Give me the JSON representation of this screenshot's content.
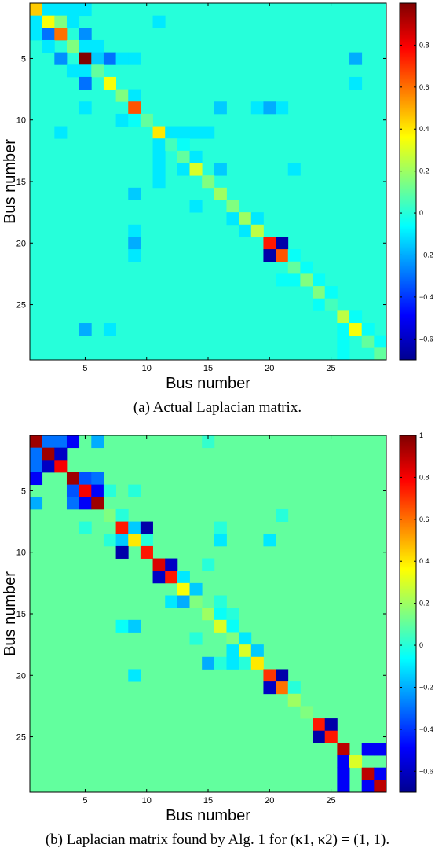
{
  "colorscale": {
    "name": "jet",
    "stops": [
      "#00008f",
      "#0000ff",
      "#0080ff",
      "#00ffff",
      "#80ff80",
      "#ffff00",
      "#ff8000",
      "#ff0000",
      "#800000"
    ]
  },
  "chart_data": [
    {
      "type": "heatmap",
      "n": 29,
      "xlabel": "Bus number",
      "ylabel": "Bus number",
      "xticks": [
        5,
        10,
        15,
        20,
        25
      ],
      "yticks": [
        5,
        10,
        15,
        20,
        25
      ],
      "clim": [
        -0.7,
        1.0
      ],
      "colorbar_ticks": [
        0.8,
        0.6,
        0.4,
        0.2,
        0,
        -0.2,
        -0.4,
        -0.6
      ],
      "background": 0,
      "cells": [
        [
          1,
          1,
          0.45
        ],
        [
          1,
          2,
          -0.1
        ],
        [
          1,
          3,
          -0.1
        ],
        [
          1,
          4,
          -0.1
        ],
        [
          1,
          5,
          -0.1
        ],
        [
          2,
          1,
          -0.1
        ],
        [
          2,
          2,
          0.35
        ],
        [
          2,
          3,
          0.15
        ],
        [
          2,
          4,
          -0.1
        ],
        [
          2,
          11,
          -0.1
        ],
        [
          3,
          1,
          -0.1
        ],
        [
          3,
          2,
          -0.3
        ],
        [
          3,
          3,
          0.6
        ],
        [
          3,
          5,
          -0.25
        ],
        [
          4,
          2,
          -0.1
        ],
        [
          4,
          4,
          0.15
        ],
        [
          4,
          5,
          -0.1
        ],
        [
          4,
          6,
          -0.1
        ],
        [
          5,
          3,
          -0.25
        ],
        [
          5,
          5,
          1.0
        ],
        [
          5,
          6,
          -0.15
        ],
        [
          5,
          7,
          -0.3
        ],
        [
          5,
          8,
          -0.1
        ],
        [
          5,
          9,
          -0.1
        ],
        [
          5,
          27,
          -0.2
        ],
        [
          6,
          4,
          -0.1
        ],
        [
          6,
          5,
          -0.1
        ],
        [
          6,
          6,
          0.1
        ],
        [
          7,
          5,
          -0.3
        ],
        [
          7,
          7,
          0.35
        ],
        [
          7,
          27,
          -0.1
        ],
        [
          8,
          8,
          0.15
        ],
        [
          8,
          9,
          -0.1
        ],
        [
          9,
          5,
          -0.1
        ],
        [
          9,
          9,
          0.65
        ],
        [
          9,
          16,
          -0.15
        ],
        [
          9,
          19,
          -0.1
        ],
        [
          9,
          20,
          -0.2
        ],
        [
          9,
          21,
          -0.1
        ],
        [
          10,
          8,
          -0.1
        ],
        [
          10,
          9,
          -0.05
        ],
        [
          10,
          10,
          0.1
        ],
        [
          11,
          3,
          -0.1
        ],
        [
          11,
          11,
          0.4
        ],
        [
          11,
          12,
          -0.1
        ],
        [
          11,
          13,
          -0.1
        ],
        [
          11,
          14,
          -0.1
        ],
        [
          11,
          15,
          -0.1
        ],
        [
          12,
          11,
          -0.1
        ],
        [
          12,
          12,
          0.05
        ],
        [
          12,
          13,
          -0.05
        ],
        [
          13,
          11,
          -0.1
        ],
        [
          13,
          13,
          0.1
        ],
        [
          13,
          14,
          -0.1
        ],
        [
          14,
          11,
          -0.1
        ],
        [
          14,
          13,
          -0.1
        ],
        [
          14,
          14,
          0.3
        ],
        [
          14,
          16,
          -0.15
        ],
        [
          14,
          22,
          -0.1
        ],
        [
          15,
          11,
          -0.1
        ],
        [
          15,
          15,
          0.15
        ],
        [
          16,
          9,
          -0.15
        ],
        [
          16,
          16,
          0.2
        ],
        [
          17,
          14,
          -0.1
        ],
        [
          17,
          17,
          0.15
        ],
        [
          18,
          17,
          -0.1
        ],
        [
          18,
          18,
          0.2
        ],
        [
          18,
          19,
          -0.1
        ],
        [
          19,
          9,
          -0.1
        ],
        [
          19,
          18,
          -0.1
        ],
        [
          19,
          19,
          0.25
        ],
        [
          20,
          9,
          -0.2
        ],
        [
          20,
          20,
          0.75
        ],
        [
          20,
          21,
          -0.65
        ],
        [
          21,
          9,
          -0.1
        ],
        [
          21,
          20,
          -0.65
        ],
        [
          21,
          21,
          0.65
        ],
        [
          21,
          22,
          -0.05
        ],
        [
          22,
          22,
          0.1
        ],
        [
          22,
          23,
          -0.05
        ],
        [
          23,
          21,
          -0.05
        ],
        [
          23,
          22,
          -0.05
        ],
        [
          23,
          23,
          0.15
        ],
        [
          23,
          24,
          -0.05
        ],
        [
          24,
          24,
          0.15
        ],
        [
          24,
          25,
          -0.05
        ],
        [
          25,
          24,
          -0.05
        ],
        [
          25,
          25,
          0.05
        ],
        [
          26,
          26,
          0.25
        ],
        [
          26,
          27,
          -0.05
        ],
        [
          27,
          5,
          -0.2
        ],
        [
          27,
          7,
          -0.1
        ],
        [
          27,
          26,
          -0.05
        ],
        [
          27,
          27,
          0.35
        ],
        [
          27,
          28,
          -0.05
        ],
        [
          28,
          26,
          -0.05
        ],
        [
          28,
          28,
          0.1
        ],
        [
          28,
          29,
          -0.05
        ],
        [
          29,
          26,
          -0.05
        ],
        [
          29,
          29,
          0.1
        ]
      ]
    },
    {
      "type": "heatmap",
      "n": 29,
      "xlabel": "Bus number",
      "ylabel": "Bus number",
      "xticks": [
        5,
        10,
        15,
        20,
        25
      ],
      "yticks": [
        5,
        10,
        15,
        20,
        25
      ],
      "clim": [
        -0.7,
        1.0
      ],
      "colorbar_ticks": [
        1,
        0.8,
        0.6,
        0.4,
        0.2,
        0,
        -0.2,
        -0.4,
        -0.6
      ],
      "background": 0.1,
      "cells": [
        [
          1,
          1,
          0.95
        ],
        [
          1,
          2,
          -0.3
        ],
        [
          1,
          3,
          -0.3
        ],
        [
          1,
          4,
          -0.5
        ],
        [
          1,
          6,
          -0.2
        ],
        [
          1,
          15,
          0.02
        ],
        [
          2,
          1,
          -0.3
        ],
        [
          2,
          2,
          0.95
        ],
        [
          2,
          3,
          -0.6
        ],
        [
          3,
          1,
          -0.3
        ],
        [
          3,
          2,
          -0.6
        ],
        [
          3,
          3,
          0.8
        ],
        [
          4,
          1,
          -0.5
        ],
        [
          4,
          4,
          0.95
        ],
        [
          4,
          5,
          -0.35
        ],
        [
          4,
          6,
          -0.3
        ],
        [
          5,
          4,
          -0.35
        ],
        [
          5,
          5,
          0.8
        ],
        [
          5,
          6,
          -0.5
        ],
        [
          5,
          7,
          0.0
        ],
        [
          5,
          9,
          0.0
        ],
        [
          6,
          1,
          -0.2
        ],
        [
          6,
          4,
          -0.3
        ],
        [
          6,
          5,
          -0.5
        ],
        [
          6,
          6,
          0.95
        ],
        [
          7,
          7,
          0.15
        ],
        [
          7,
          8,
          0.0
        ],
        [
          7,
          21,
          0.0
        ],
        [
          8,
          5,
          0.0
        ],
        [
          8,
          8,
          0.75
        ],
        [
          8,
          9,
          -0.15
        ],
        [
          8,
          10,
          -0.65
        ],
        [
          8,
          16,
          0.0
        ],
        [
          9,
          7,
          0.0
        ],
        [
          9,
          8,
          -0.15
        ],
        [
          9,
          9,
          0.4
        ],
        [
          9,
          10,
          0.0
        ],
        [
          9,
          16,
          -0.1
        ],
        [
          9,
          20,
          -0.1
        ],
        [
          10,
          8,
          -0.65
        ],
        [
          10,
          10,
          0.75
        ],
        [
          11,
          11,
          0.85
        ],
        [
          11,
          12,
          -0.6
        ],
        [
          11,
          15,
          0.0
        ],
        [
          12,
          11,
          -0.6
        ],
        [
          12,
          12,
          0.75
        ],
        [
          12,
          13,
          -0.1
        ],
        [
          13,
          13,
          0.35
        ],
        [
          13,
          14,
          -0.15
        ],
        [
          14,
          12,
          -0.1
        ],
        [
          14,
          13,
          -0.2
        ],
        [
          14,
          14,
          0.15
        ],
        [
          14,
          16,
          0.0
        ],
        [
          15,
          15,
          0.2
        ],
        [
          15,
          16,
          -0.05
        ],
        [
          15,
          17,
          0.0
        ],
        [
          16,
          8,
          -0.05
        ],
        [
          16,
          9,
          -0.15
        ],
        [
          16,
          16,
          0.3
        ],
        [
          16,
          17,
          -0.05
        ],
        [
          17,
          14,
          0.0
        ],
        [
          17,
          17,
          0.15
        ],
        [
          17,
          18,
          -0.1
        ],
        [
          18,
          17,
          -0.1
        ],
        [
          18,
          18,
          0.3
        ],
        [
          18,
          19,
          -0.15
        ],
        [
          19,
          15,
          -0.2
        ],
        [
          19,
          16,
          0.0
        ],
        [
          19,
          17,
          -0.1
        ],
        [
          19,
          18,
          0.0
        ],
        [
          19,
          19,
          0.4
        ],
        [
          20,
          9,
          -0.1
        ],
        [
          20,
          20,
          0.7
        ],
        [
          20,
          21,
          -0.65
        ],
        [
          21,
          20,
          -0.6
        ],
        [
          21,
          21,
          0.6
        ],
        [
          21,
          22,
          0.0
        ],
        [
          22,
          22,
          0.2
        ],
        [
          23,
          23,
          0.15
        ],
        [
          24,
          24,
          0.75
        ],
        [
          24,
          25,
          -0.65
        ],
        [
          25,
          24,
          -0.65
        ],
        [
          25,
          25,
          0.75
        ],
        [
          26,
          26,
          0.9
        ],
        [
          26,
          28,
          -0.5
        ],
        [
          26,
          29,
          -0.5
        ],
        [
          27,
          26,
          -0.5
        ],
        [
          27,
          27,
          0.3
        ],
        [
          28,
          26,
          -0.5
        ],
        [
          28,
          28,
          0.9
        ],
        [
          28,
          29,
          -0.5
        ],
        [
          29,
          26,
          -0.5
        ],
        [
          29,
          28,
          -0.5
        ],
        [
          29,
          29,
          0.9
        ]
      ]
    }
  ],
  "captions": {
    "a": "(a)  Actual Laplacian matrix.",
    "b": "(b)  Laplacian matrix found by Alg. 1 for (κ1, κ2) = (1, 1)."
  }
}
